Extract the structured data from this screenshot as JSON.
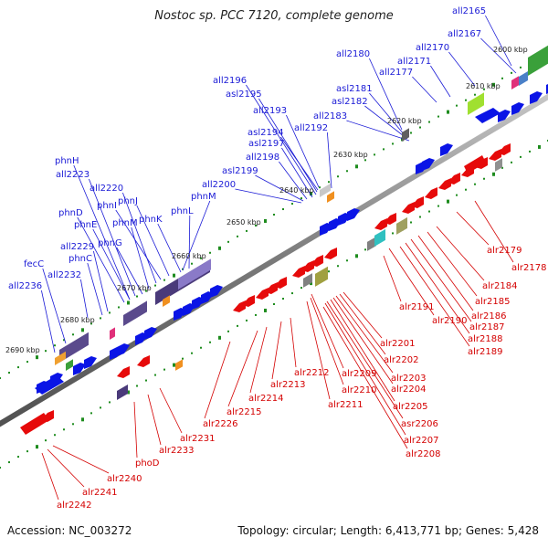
{
  "title": "Nostoc sp. PCC 7120, complete genome",
  "footer": {
    "accession": "Accession: NC_003272",
    "topology": "Topology: circular; Length: 6,413,771 bp; Genes: 5,428"
  },
  "colors": {
    "forward_gene": "#0a14e6",
    "reverse_gene": "#e60a0a",
    "forward_label": "#1a1ad6",
    "reverse_label": "#d40000",
    "backbone": "#808080",
    "tick": "#1e8c1e"
  },
  "kbp_markers": [
    "2600 kbp",
    "2610 kbp",
    "2620 kbp",
    "2630 kbp",
    "2640 kbp",
    "2650 kbp",
    "2660 kbp",
    "2670 kbp",
    "2680 kbp",
    "2690 kbp"
  ],
  "forward_labels": [
    "all2165",
    "all2167",
    "all2170",
    "all2171",
    "all2177",
    "all2180",
    "asl2181",
    "asl2182",
    "all2183",
    "all2192",
    "all2193",
    "asl2194",
    "asl2195",
    "all2196",
    "asl2197",
    "all2198",
    "asl2199",
    "all2200",
    "phnM",
    "phnL",
    "phnK",
    "phnJ",
    "phnI",
    "phnM",
    "all2220",
    "phnG",
    "phnH",
    "all2223",
    "phnD",
    "phnE",
    "phnC",
    "all2229",
    "all2232",
    "fecC",
    "all2236"
  ],
  "reverse_labels": [
    "alr2179",
    "alr2178",
    "alr2184",
    "alr2185",
    "alr2186",
    "alr2187",
    "alr2188",
    "alr2189",
    "alr2190",
    "alr2191",
    "alr2201",
    "alr2202",
    "alr2203",
    "alr2204",
    "alr2205",
    "asr2206",
    "alr2207",
    "alr2208",
    "alr2209",
    "alr2210",
    "alr2211",
    "alr2212",
    "alr2213",
    "alr2214",
    "alr2215",
    "alr2226",
    "alr2231",
    "alr2233",
    "phoD",
    "alr2240",
    "alr2241",
    "alr2242"
  ]
}
